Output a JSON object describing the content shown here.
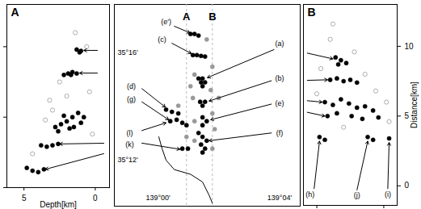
{
  "chart_data": [
    {
      "type": "scatter",
      "title": "A",
      "xlabel": "Depth[km]",
      "xlim": [
        6.2,
        -1
      ],
      "xticks": [
        5,
        0
      ],
      "ylim": [
        0,
        13
      ],
      "yticks": [
        0,
        5,
        10
      ],
      "tick_labels": "x",
      "series": [
        {
          "color": "#999999",
          "marker": "open circle",
          "x": [
            0.6,
            2.5,
            3.2,
            0.4,
            3.5,
            0.2,
            4.4,
            2.0,
            1.4,
            3.0
          ],
          "y": [
            10.0,
            7.5,
            6.2,
            6.8,
            4.8,
            3.8,
            2.4,
            6.5,
            11.0,
            5.5
          ]
        },
        {
          "color": "#000000",
          "marker": "filled circle",
          "x": [
            1.0,
            1.3,
            1.1,
            1.3,
            1.6,
            1.9,
            2.2,
            1.7,
            1.2,
            1.6,
            2.0,
            2.4,
            1.0,
            1.5,
            2.6,
            2.2,
            1.8,
            0.8,
            2.8,
            3.0,
            2.6,
            3.4,
            3.8,
            3.6,
            4.0,
            4.4,
            4.8
          ],
          "y": [
            9.7,
            9.8,
            9.6,
            8.1,
            8.2,
            8.1,
            8.0,
            8.0,
            5.3,
            5.0,
            4.7,
            4.5,
            4.6,
            4.3,
            4.0,
            5.1,
            4.2,
            5.0,
            4.3,
            3.0,
            3.1,
            2.9,
            3.0,
            1.3,
            1.1,
            1.2,
            1.4
          ]
        }
      ],
      "arrows": [
        {
          "from": [
            -0.15,
            9.74
          ],
          "to": [
            0.8,
            9.74
          ]
        },
        {
          "from": [
            -0.15,
            8.13
          ],
          "to": [
            1.1,
            8.13
          ]
        },
        {
          "from": [
            -0.6,
            3.15
          ],
          "to": [
            2.5,
            3.1
          ]
        },
        {
          "from": [
            -0.6,
            2.41
          ],
          "to": [
            3.5,
            1.3
          ]
        }
      ]
    },
    {
      "type": "map",
      "xlim": [
        138.976,
        139.078
      ],
      "xticks": [
        {
          "value": 139.0,
          "label": "139°00'"
        },
        {
          "value": 139.0667,
          "label": "139°04'"
        }
      ],
      "ylim": [
        35.1715,
        35.2966
      ],
      "yticks": [
        {
          "value": 35.2,
          "label": "35°12'"
        },
        {
          "value": 35.2667,
          "label": "35°16'"
        }
      ],
      "sections": [
        {
          "label": "A",
          "lon": 139.0156
        },
        {
          "label": "B",
          "lon": 139.0298
        }
      ],
      "coastline": {
        "x": [
          139.0004,
          139.0022,
          139.0044,
          139.0089,
          139.0178,
          139.0244,
          139.028,
          139.0298
        ],
        "y": [
          35.2145,
          35.2072,
          35.2,
          35.1942,
          35.1913,
          35.1865,
          35.1783,
          35.1734
        ]
      },
      "series": [
        {
          "color": "#999999",
          "marker": "filled circle",
          "x": [
            139.0267,
            139.0298,
            139.02,
            139.0289,
            139.0191,
            139.0298,
            139.02,
            139.0311,
            139.02,
            139.0298,
            139.0333,
            139.0178,
            139.0111,
            139.0156
          ],
          "y": [
            35.2749,
            35.258,
            35.2531,
            35.2435,
            35.2386,
            35.229,
            35.2242,
            35.2193,
            35.2121,
            35.2072,
            35.2386,
            35.2459,
            35.2338,
            35.2145
          ]
        },
        {
          "color": "#000000",
          "marker": "filled circle",
          "x": [
            139.0178,
            139.02,
            139.0222,
            139.0191,
            139.0213,
            139.0236,
            139.0258,
            139.0222,
            139.0244,
            139.0236,
            139.0258,
            139.0244,
            139.0231,
            139.0258,
            139.0244,
            139.0244,
            139.0267,
            139.0244,
            139.0222,
            139.0244,
            139.0267,
            139.0236,
            139.0258,
            139.0244,
            139.0044,
            139.0076,
            139.0111,
            139.0067,
            139.0102,
            139.0133,
            139.0156,
            139.0133,
            139.0164
          ],
          "y": [
            35.2783,
            35.2783,
            35.2773,
            35.2652,
            35.2652,
            35.2647,
            35.2643,
            35.2507,
            35.2507,
            35.2483,
            35.2483,
            35.2459,
            35.2362,
            35.2362,
            35.2338,
            35.2266,
            35.2242,
            35.2217,
            35.2169,
            35.2145,
            35.2121,
            35.2097,
            35.2072,
            35.2048,
            35.2314,
            35.23,
            35.229,
            35.2242,
            35.2251,
            35.2232,
            35.2217,
            35.2072,
            35.2072
          ]
        }
      ],
      "labels": [
        {
          "text": "(e')",
          "x": 139.0044,
          "y": 35.286
        },
        {
          "text": "(c)",
          "x": 139.0022,
          "y": 35.2749
        },
        {
          "text": "(a)",
          "x": 139.0667,
          "y": 35.2725
        },
        {
          "text": "(b)",
          "x": 139.0667,
          "y": 35.2507
        },
        {
          "text": "(e)",
          "x": 139.0667,
          "y": 35.2353
        },
        {
          "text": "(f)",
          "x": 139.0667,
          "y": 35.2169
        },
        {
          "text": "(d)",
          "x": 138.9853,
          "y": 35.2459
        },
        {
          "text": "(g)",
          "x": 138.9853,
          "y": 35.2377
        },
        {
          "text": "(l)",
          "x": 138.9844,
          "y": 35.2169
        },
        {
          "text": "(k)",
          "x": 138.9844,
          "y": 35.2097
        }
      ],
      "arrows": [
        {
          "from": [
            139.0089,
            35.2831
          ],
          "to": [
            139.0175,
            35.279
          ]
        },
        {
          "from": [
            139.0076,
            35.2725
          ],
          "to": [
            139.0182,
            35.2662
          ]
        },
        {
          "from": [
            139.0636,
            35.2686
          ],
          "to": [
            139.0271,
            35.2512
          ]
        },
        {
          "from": [
            139.0622,
            35.2493
          ],
          "to": [
            139.028,
            35.2367
          ]
        },
        {
          "from": [
            139.0622,
            35.2348
          ],
          "to": [
            139.0289,
            35.2251
          ]
        },
        {
          "from": [
            139.0622,
            35.2169
          ],
          "to": [
            139.028,
            35.2121
          ]
        },
        {
          "from": [
            138.9911,
            35.2444
          ],
          "to": [
            139.004,
            35.2329
          ]
        },
        {
          "from": [
            138.9911,
            35.2362
          ],
          "to": [
            139.0058,
            35.2251
          ]
        },
        {
          "from": [
            138.9911,
            35.2184
          ],
          "to": [
            139.0044,
            35.2232
          ]
        },
        {
          "from": [
            138.9911,
            35.2106
          ],
          "to": [
            139.012,
            35.2068
          ]
        }
      ]
    },
    {
      "type": "scatter",
      "title": "B",
      "ylabel": "Distance[km]",
      "xlim": [
        -1,
        6
      ],
      "xticks": [
        0,
        5
      ],
      "ylim": [
        -1.4,
        13
      ],
      "yticks": [
        0,
        5,
        10
      ],
      "tick_labels": "y",
      "series": [
        {
          "color": "#999999",
          "marker": "open circle",
          "x": [
            1.0,
            2.8,
            0.3,
            3.6,
            4.4,
            5.2,
            0.0,
            2.0,
            5.4,
            1.2
          ],
          "y": [
            10.5,
            9.6,
            8.4,
            8.0,
            6.8,
            6.0,
            6.6,
            4.2,
            4.6,
            11.6
          ]
        },
        {
          "color": "#000000",
          "marker": "filled circle",
          "x": [
            1.4,
            1.8,
            2.2,
            1.6,
            1.0,
            1.5,
            2.0,
            2.5,
            3.0,
            0.6,
            1.2,
            1.8,
            2.4,
            3.0,
            3.6,
            4.2,
            1.5,
            2.6,
            3.4,
            4.6,
            0.8,
            0.2,
            0.6,
            3.8,
            4.2,
            5.4
          ],
          "y": [
            9.2,
            9.0,
            8.8,
            8.7,
            7.6,
            7.7,
            7.5,
            7.6,
            7.4,
            6.0,
            5.8,
            6.2,
            5.9,
            5.6,
            5.7,
            5.4,
            5.2,
            5.0,
            4.8,
            4.9,
            5.0,
            3.5,
            3.3,
            3.5,
            3.3,
            3.4
          ]
        }
      ],
      "labels": [
        {
          "text": "(h)",
          "x": -0.5,
          "y": -0.6
        },
        {
          "text": "(j)",
          "x": 3.0,
          "y": -0.7
        },
        {
          "text": "(i)",
          "x": 5.3,
          "y": -0.6
        }
      ],
      "arrows": [
        {
          "from": [
            -0.71,
            9.51
          ],
          "to": [
            1.2,
            9.1
          ]
        },
        {
          "from": [
            -0.71,
            7.56
          ],
          "to": [
            0.8,
            7.6
          ]
        },
        {
          "from": [
            -0.71,
            6.1
          ],
          "to": [
            0.4,
            6.0
          ]
        },
        {
          "from": [
            -0.71,
            5.27
          ],
          "to": [
            0.6,
            5.0
          ]
        },
        {
          "from": [
            -0.2,
            -0.2
          ],
          "to": [
            0.2,
            3.2
          ]
        },
        {
          "from": [
            3.0,
            -0.3
          ],
          "to": [
            3.8,
            3.2
          ]
        },
        {
          "from": [
            5.3,
            -0.2
          ],
          "to": [
            5.4,
            3.1
          ]
        }
      ]
    }
  ]
}
